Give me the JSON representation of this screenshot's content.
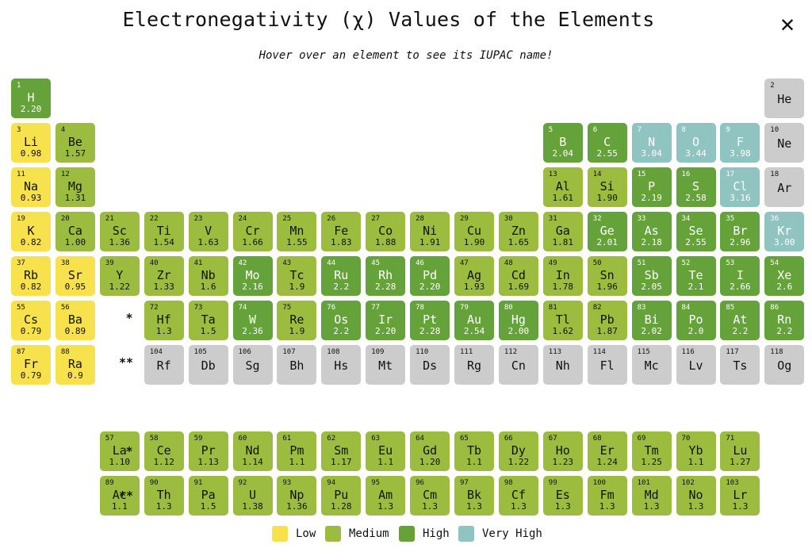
{
  "page": {
    "title": "Electronegativity (χ) Values of the Elements",
    "subtitle": "Hover over an element to see its IUPAC name!",
    "close_icon": "close-icon"
  },
  "colors": {
    "low": "#f7e14c",
    "medium": "#9cbc40",
    "high": "#65a23a",
    "very_high": "#8fc4c0",
    "none": "#cccccc"
  },
  "markers": {
    "lanthanide": "*",
    "actinide": "**"
  },
  "legend": [
    {
      "label": "Low",
      "category": "low"
    },
    {
      "label": "Medium",
      "category": "medium"
    },
    {
      "label": "High",
      "category": "high"
    },
    {
      "label": "Very High",
      "category": "very_high"
    }
  ],
  "chart_data": {
    "type": "table",
    "title": "Electronegativity (χ) Values of the Elements",
    "elements": [
      {
        "n": 1,
        "s": "H",
        "v": "2.20",
        "c": "high"
      },
      {
        "n": 2,
        "s": "He",
        "v": "",
        "c": "none"
      },
      {
        "n": 3,
        "s": "Li",
        "v": "0.98",
        "c": "low"
      },
      {
        "n": 4,
        "s": "Be",
        "v": "1.57",
        "c": "medium"
      },
      {
        "n": 5,
        "s": "B",
        "v": "2.04",
        "c": "high"
      },
      {
        "n": 6,
        "s": "C",
        "v": "2.55",
        "c": "high"
      },
      {
        "n": 7,
        "s": "N",
        "v": "3.04",
        "c": "very_high"
      },
      {
        "n": 8,
        "s": "O",
        "v": "3.44",
        "c": "very_high"
      },
      {
        "n": 9,
        "s": "F",
        "v": "3.98",
        "c": "very_high"
      },
      {
        "n": 10,
        "s": "Ne",
        "v": "",
        "c": "none"
      },
      {
        "n": 11,
        "s": "Na",
        "v": "0.93",
        "c": "low"
      },
      {
        "n": 12,
        "s": "Mg",
        "v": "1.31",
        "c": "medium"
      },
      {
        "n": 13,
        "s": "Al",
        "v": "1.61",
        "c": "medium"
      },
      {
        "n": 14,
        "s": "Si",
        "v": "1.90",
        "c": "medium"
      },
      {
        "n": 15,
        "s": "P",
        "v": "2.19",
        "c": "high"
      },
      {
        "n": 16,
        "s": "S",
        "v": "2.58",
        "c": "high"
      },
      {
        "n": 17,
        "s": "Cl",
        "v": "3.16",
        "c": "very_high"
      },
      {
        "n": 18,
        "s": "Ar",
        "v": "",
        "c": "none"
      },
      {
        "n": 19,
        "s": "K",
        "v": "0.82",
        "c": "low"
      },
      {
        "n": 20,
        "s": "Ca",
        "v": "1.00",
        "c": "medium"
      },
      {
        "n": 21,
        "s": "Sc",
        "v": "1.36",
        "c": "medium"
      },
      {
        "n": 22,
        "s": "Ti",
        "v": "1.54",
        "c": "medium"
      },
      {
        "n": 23,
        "s": "V",
        "v": "1.63",
        "c": "medium"
      },
      {
        "n": 24,
        "s": "Cr",
        "v": "1.66",
        "c": "medium"
      },
      {
        "n": 25,
        "s": "Mn",
        "v": "1.55",
        "c": "medium"
      },
      {
        "n": 26,
        "s": "Fe",
        "v": "1.83",
        "c": "medium"
      },
      {
        "n": 27,
        "s": "Co",
        "v": "1.88",
        "c": "medium"
      },
      {
        "n": 28,
        "s": "Ni",
        "v": "1.91",
        "c": "medium"
      },
      {
        "n": 29,
        "s": "Cu",
        "v": "1.90",
        "c": "medium"
      },
      {
        "n": 30,
        "s": "Zn",
        "v": "1.65",
        "c": "medium"
      },
      {
        "n": 31,
        "s": "Ga",
        "v": "1.81",
        "c": "medium"
      },
      {
        "n": 32,
        "s": "Ge",
        "v": "2.01",
        "c": "high"
      },
      {
        "n": 33,
        "s": "As",
        "v": "2.18",
        "c": "high"
      },
      {
        "n": 34,
        "s": "Se",
        "v": "2.55",
        "c": "high"
      },
      {
        "n": 35,
        "s": "Br",
        "v": "2.96",
        "c": "high"
      },
      {
        "n": 36,
        "s": "Kr",
        "v": "3.00",
        "c": "very_high"
      },
      {
        "n": 37,
        "s": "Rb",
        "v": "0.82",
        "c": "low"
      },
      {
        "n": 38,
        "s": "Sr",
        "v": "0.95",
        "c": "low"
      },
      {
        "n": 39,
        "s": "Y",
        "v": "1.22",
        "c": "medium"
      },
      {
        "n": 40,
        "s": "Zr",
        "v": "1.33",
        "c": "medium"
      },
      {
        "n": 41,
        "s": "Nb",
        "v": "1.6",
        "c": "medium"
      },
      {
        "n": 42,
        "s": "Mo",
        "v": "2.16",
        "c": "high"
      },
      {
        "n": 43,
        "s": "Tc",
        "v": "1.9",
        "c": "medium"
      },
      {
        "n": 44,
        "s": "Ru",
        "v": "2.2",
        "c": "high"
      },
      {
        "n": 45,
        "s": "Rh",
        "v": "2.28",
        "c": "high"
      },
      {
        "n": 46,
        "s": "Pd",
        "v": "2.20",
        "c": "high"
      },
      {
        "n": 47,
        "s": "Ag",
        "v": "1.93",
        "c": "medium"
      },
      {
        "n": 48,
        "s": "Cd",
        "v": "1.69",
        "c": "medium"
      },
      {
        "n": 49,
        "s": "In",
        "v": "1.78",
        "c": "medium"
      },
      {
        "n": 50,
        "s": "Sn",
        "v": "1.96",
        "c": "medium"
      },
      {
        "n": 51,
        "s": "Sb",
        "v": "2.05",
        "c": "high"
      },
      {
        "n": 52,
        "s": "Te",
        "v": "2.1",
        "c": "high"
      },
      {
        "n": 53,
        "s": "I",
        "v": "2.66",
        "c": "high"
      },
      {
        "n": 54,
        "s": "Xe",
        "v": "2.6",
        "c": "high"
      },
      {
        "n": 55,
        "s": "Cs",
        "v": "0.79",
        "c": "low"
      },
      {
        "n": 56,
        "s": "Ba",
        "v": "0.89",
        "c": "low"
      },
      {
        "n": 57,
        "s": "La",
        "v": "1.10",
        "c": "medium"
      },
      {
        "n": 58,
        "s": "Ce",
        "v": "1.12",
        "c": "medium"
      },
      {
        "n": 59,
        "s": "Pr",
        "v": "1.13",
        "c": "medium"
      },
      {
        "n": 60,
        "s": "Nd",
        "v": "1.14",
        "c": "medium"
      },
      {
        "n": 61,
        "s": "Pm",
        "v": "1.1",
        "c": "medium"
      },
      {
        "n": 62,
        "s": "Sm",
        "v": "1.17",
        "c": "medium"
      },
      {
        "n": 63,
        "s": "Eu",
        "v": "1.1",
        "c": "medium"
      },
      {
        "n": 64,
        "s": "Gd",
        "v": "1.20",
        "c": "medium"
      },
      {
        "n": 65,
        "s": "Tb",
        "v": "1.1",
        "c": "medium"
      },
      {
        "n": 66,
        "s": "Dy",
        "v": "1.22",
        "c": "medium"
      },
      {
        "n": 67,
        "s": "Ho",
        "v": "1.23",
        "c": "medium"
      },
      {
        "n": 68,
        "s": "Er",
        "v": "1.24",
        "c": "medium"
      },
      {
        "n": 69,
        "s": "Tm",
        "v": "1.25",
        "c": "medium"
      },
      {
        "n": 70,
        "s": "Yb",
        "v": "1.1",
        "c": "medium"
      },
      {
        "n": 71,
        "s": "Lu",
        "v": "1.27",
        "c": "medium"
      },
      {
        "n": 72,
        "s": "Hf",
        "v": "1.3",
        "c": "medium"
      },
      {
        "n": 73,
        "s": "Ta",
        "v": "1.5",
        "c": "medium"
      },
      {
        "n": 74,
        "s": "W",
        "v": "2.36",
        "c": "high"
      },
      {
        "n": 75,
        "s": "Re",
        "v": "1.9",
        "c": "medium"
      },
      {
        "n": 76,
        "s": "Os",
        "v": "2.2",
        "c": "high"
      },
      {
        "n": 77,
        "s": "Ir",
        "v": "2.20",
        "c": "high"
      },
      {
        "n": 78,
        "s": "Pt",
        "v": "2.28",
        "c": "high"
      },
      {
        "n": 79,
        "s": "Au",
        "v": "2.54",
        "c": "high"
      },
      {
        "n": 80,
        "s": "Hg",
        "v": "2.00",
        "c": "high"
      },
      {
        "n": 81,
        "s": "Tl",
        "v": "1.62",
        "c": "medium"
      },
      {
        "n": 82,
        "s": "Pb",
        "v": "1.87",
        "c": "medium"
      },
      {
        "n": 83,
        "s": "Bi",
        "v": "2.02",
        "c": "high"
      },
      {
        "n": 84,
        "s": "Po",
        "v": "2.0",
        "c": "high"
      },
      {
        "n": 85,
        "s": "At",
        "v": "2.2",
        "c": "high"
      },
      {
        "n": 86,
        "s": "Rn",
        "v": "2.2",
        "c": "high"
      },
      {
        "n": 87,
        "s": "Fr",
        "v": "0.79",
        "c": "low"
      },
      {
        "n": 88,
        "s": "Ra",
        "v": "0.9",
        "c": "low"
      },
      {
        "n": 89,
        "s": "Ac",
        "v": "1.1",
        "c": "medium"
      },
      {
        "n": 90,
        "s": "Th",
        "v": "1.3",
        "c": "medium"
      },
      {
        "n": 91,
        "s": "Pa",
        "v": "1.5",
        "c": "medium"
      },
      {
        "n": 92,
        "s": "U",
        "v": "1.38",
        "c": "medium"
      },
      {
        "n": 93,
        "s": "Np",
        "v": "1.36",
        "c": "medium"
      },
      {
        "n": 94,
        "s": "Pu",
        "v": "1.28",
        "c": "medium"
      },
      {
        "n": 95,
        "s": "Am",
        "v": "1.3",
        "c": "medium"
      },
      {
        "n": 96,
        "s": "Cm",
        "v": "1.3",
        "c": "medium"
      },
      {
        "n": 97,
        "s": "Bk",
        "v": "1.3",
        "c": "medium"
      },
      {
        "n": 98,
        "s": "Cf",
        "v": "1.3",
        "c": "medium"
      },
      {
        "n": 99,
        "s": "Es",
        "v": "1.3",
        "c": "medium"
      },
      {
        "n": 100,
        "s": "Fm",
        "v": "1.3",
        "c": "medium"
      },
      {
        "n": 101,
        "s": "Md",
        "v": "1.3",
        "c": "medium"
      },
      {
        "n": 102,
        "s": "No",
        "v": "1.3",
        "c": "medium"
      },
      {
        "n": 103,
        "s": "Lr",
        "v": "1.3",
        "c": "medium"
      },
      {
        "n": 104,
        "s": "Rf",
        "v": "",
        "c": "none"
      },
      {
        "n": 105,
        "s": "Db",
        "v": "",
        "c": "none"
      },
      {
        "n": 106,
        "s": "Sg",
        "v": "",
        "c": "none"
      },
      {
        "n": 107,
        "s": "Bh",
        "v": "",
        "c": "none"
      },
      {
        "n": 108,
        "s": "Hs",
        "v": "",
        "c": "none"
      },
      {
        "n": 109,
        "s": "Mt",
        "v": "",
        "c": "none"
      },
      {
        "n": 110,
        "s": "Ds",
        "v": "",
        "c": "none"
      },
      {
        "n": 111,
        "s": "Rg",
        "v": "",
        "c": "none"
      },
      {
        "n": 112,
        "s": "Cn",
        "v": "",
        "c": "none"
      },
      {
        "n": 113,
        "s": "Nh",
        "v": "",
        "c": "none"
      },
      {
        "n": 114,
        "s": "Fl",
        "v": "",
        "c": "none"
      },
      {
        "n": 115,
        "s": "Mc",
        "v": "",
        "c": "none"
      },
      {
        "n": 116,
        "s": "Lv",
        "v": "",
        "c": "none"
      },
      {
        "n": 117,
        "s": "Ts",
        "v": "",
        "c": "none"
      },
      {
        "n": 118,
        "s": "Og",
        "v": "",
        "c": "none"
      }
    ]
  }
}
